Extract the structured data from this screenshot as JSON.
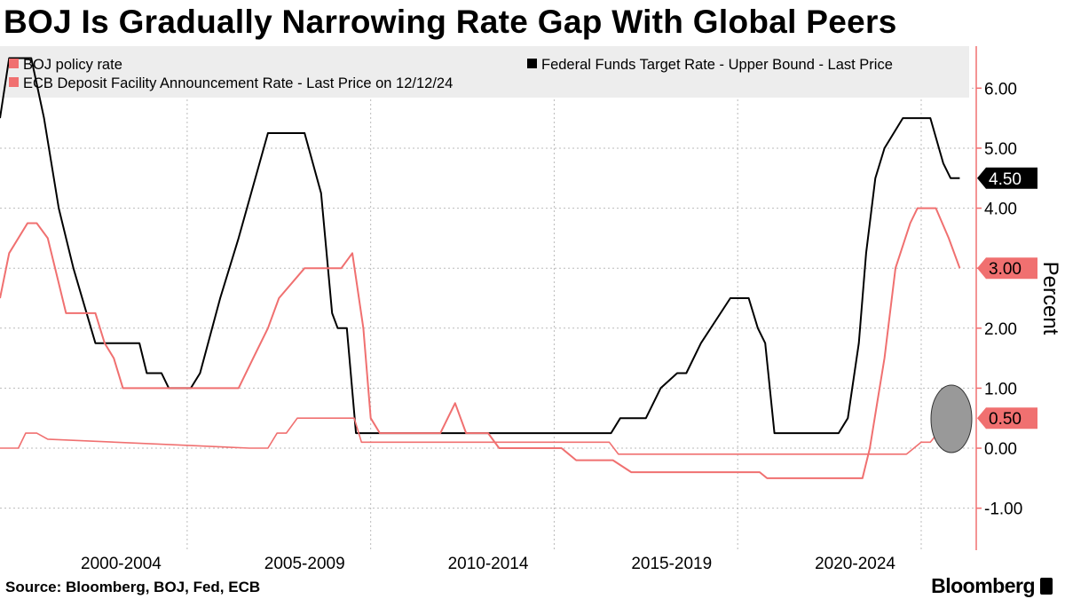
{
  "title": "BOJ Is Gradually Narrowing Rate Gap With Global Peers",
  "source": "Source: Bloomberg, BOJ, Fed, ECB",
  "brand": "Bloomberg",
  "colors": {
    "fed": "#000000",
    "ecb": "#f07070",
    "boj": "#f07070",
    "axis": "#f07070",
    "grid": "#bbbbbb",
    "legend_bg": "#ededed",
    "highlight": "#999999"
  },
  "chart_data": {
    "type": "line",
    "title": "BOJ Is Gradually Narrowing Rate Gap With Global Peers",
    "ylabel": "Percent",
    "ylim": [
      -1.7,
      6.7
    ],
    "xlim": [
      1999.0,
      2025.6
    ],
    "y_ticks": [
      6,
      5,
      4,
      3,
      2,
      1,
      0,
      -1
    ],
    "y_tick_labels": [
      "6.00",
      "5.00",
      "4.00",
      "3.00",
      "2.00",
      "1.00",
      "0.00",
      "-1.00"
    ],
    "x_tick_labels": [
      {
        "label": "2000-2004",
        "x": 2002.3
      },
      {
        "label": "2005-2009",
        "x": 2007.3
      },
      {
        "label": "2010-2014",
        "x": 2012.3
      },
      {
        "label": "2015-2019",
        "x": 2017.3
      },
      {
        "label": "2020-2024",
        "x": 2022.3
      }
    ],
    "x_grid": [
      2004.1,
      2009.1,
      2014.1,
      2019.1,
      2024.1
    ],
    "legend_placement": "top",
    "legend": [
      {
        "label": "BOJ policy rate",
        "color": "#f07070"
      },
      {
        "label": "Federal Funds Target Rate - Upper Bound - Last Price",
        "color": "#000000"
      },
      {
        "label": "ECB Deposit Facility Announcement Rate - Last Price on 12/12/24",
        "color": "#f07070"
      }
    ],
    "last_value_tags": [
      {
        "label": "4.50",
        "value": 4.5,
        "style": "black"
      },
      {
        "label": "3.00",
        "value": 3.0,
        "style": "red"
      },
      {
        "label": "0.50",
        "value": 0.5,
        "style": "red"
      }
    ],
    "series": [
      {
        "name": "Federal Funds Target Rate - Upper Bound - Last Price",
        "color": "#000000",
        "points": [
          [
            1999.0,
            5.5
          ],
          [
            1999.25,
            6.5
          ],
          [
            1999.85,
            6.5
          ],
          [
            2000.2,
            5.5
          ],
          [
            2000.6,
            4.0
          ],
          [
            2001.0,
            3.0
          ],
          [
            2001.6,
            1.75
          ],
          [
            2002.35,
            1.75
          ],
          [
            2002.8,
            1.75
          ],
          [
            2003.0,
            1.25
          ],
          [
            2003.4,
            1.25
          ],
          [
            2003.6,
            1.0
          ],
          [
            2004.2,
            1.0
          ],
          [
            2004.45,
            1.25
          ],
          [
            2005.0,
            2.5
          ],
          [
            2005.5,
            3.5
          ],
          [
            2006.3,
            5.25
          ],
          [
            2007.3,
            5.25
          ],
          [
            2007.75,
            4.25
          ],
          [
            2008.05,
            2.25
          ],
          [
            2008.2,
            2.0
          ],
          [
            2008.45,
            2.0
          ],
          [
            2008.7,
            0.25
          ],
          [
            2015.65,
            0.25
          ],
          [
            2015.9,
            0.5
          ],
          [
            2016.6,
            0.5
          ],
          [
            2017.0,
            1.0
          ],
          [
            2017.45,
            1.25
          ],
          [
            2017.7,
            1.25
          ],
          [
            2018.1,
            1.75
          ],
          [
            2018.9,
            2.5
          ],
          [
            2019.4,
            2.5
          ],
          [
            2019.65,
            2.0
          ],
          [
            2019.85,
            1.75
          ],
          [
            2020.1,
            0.25
          ],
          [
            2021.85,
            0.25
          ],
          [
            2022.1,
            0.5
          ],
          [
            2022.4,
            1.75
          ],
          [
            2022.6,
            3.25
          ],
          [
            2022.85,
            4.5
          ],
          [
            2023.1,
            5.0
          ],
          [
            2023.6,
            5.5
          ],
          [
            2024.35,
            5.5
          ],
          [
            2024.7,
            4.75
          ],
          [
            2024.9,
            4.5
          ],
          [
            2025.15,
            4.5
          ]
        ]
      },
      {
        "name": "ECB Deposit Facility Announcement Rate - Last Price on 12/12/24",
        "color": "#f07070",
        "points": [
          [
            1999.0,
            2.5
          ],
          [
            1999.25,
            3.25
          ],
          [
            1999.75,
            3.75
          ],
          [
            2000.0,
            3.75
          ],
          [
            2000.3,
            3.5
          ],
          [
            2000.6,
            2.75
          ],
          [
            2000.8,
            2.25
          ],
          [
            2001.6,
            2.25
          ],
          [
            2001.85,
            1.75
          ],
          [
            2002.1,
            1.5
          ],
          [
            2002.35,
            1.0
          ],
          [
            2005.5,
            1.0
          ],
          [
            2005.9,
            1.5
          ],
          [
            2006.3,
            2.0
          ],
          [
            2006.6,
            2.5
          ],
          [
            2007.3,
            3.0
          ],
          [
            2008.3,
            3.0
          ],
          [
            2008.6,
            3.25
          ],
          [
            2008.9,
            2.0
          ],
          [
            2009.1,
            0.5
          ],
          [
            2009.35,
            0.25
          ],
          [
            2011.0,
            0.25
          ],
          [
            2011.4,
            0.75
          ],
          [
            2011.7,
            0.25
          ],
          [
            2012.3,
            0.25
          ],
          [
            2012.6,
            0.0
          ],
          [
            2014.3,
            0.0
          ],
          [
            2014.7,
            -0.2
          ],
          [
            2015.7,
            -0.2
          ],
          [
            2016.2,
            -0.4
          ],
          [
            2019.7,
            -0.4
          ],
          [
            2019.9,
            -0.5
          ],
          [
            2022.5,
            -0.5
          ],
          [
            2022.7,
            0.0
          ],
          [
            2022.9,
            0.75
          ],
          [
            2023.1,
            1.5
          ],
          [
            2023.4,
            3.0
          ],
          [
            2023.8,
            3.75
          ],
          [
            2024.0,
            4.0
          ],
          [
            2024.5,
            4.0
          ],
          [
            2024.85,
            3.5
          ],
          [
            2025.15,
            3.0
          ]
        ]
      },
      {
        "name": "BOJ policy rate",
        "color": "#f07070",
        "points": [
          [
            1999.0,
            0.0
          ],
          [
            1999.5,
            0.0
          ],
          [
            1999.7,
            0.25
          ],
          [
            2000.0,
            0.25
          ],
          [
            2000.3,
            0.15
          ],
          [
            2005.8,
            0.0
          ],
          [
            2006.3,
            0.0
          ],
          [
            2006.55,
            0.25
          ],
          [
            2006.8,
            0.25
          ],
          [
            2007.1,
            0.5
          ],
          [
            2008.65,
            0.5
          ],
          [
            2008.85,
            0.1
          ],
          [
            2015.6,
            0.1
          ],
          [
            2015.85,
            -0.1
          ],
          [
            2023.7,
            -0.1
          ],
          [
            2024.1,
            0.1
          ],
          [
            2024.35,
            0.1
          ],
          [
            2024.55,
            0.25
          ],
          [
            2024.85,
            0.25
          ],
          [
            2025.15,
            0.5
          ]
        ]
      }
    ]
  }
}
